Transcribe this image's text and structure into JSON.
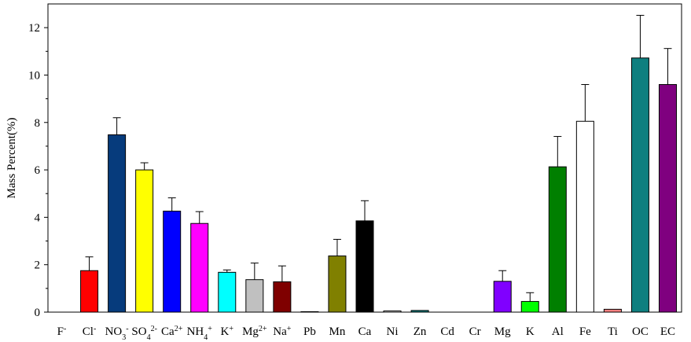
{
  "chart_data": {
    "type": "bar",
    "title": "",
    "xlabel": "",
    "ylabel": "Mass Percent(%)",
    "ylim": [
      0,
      13
    ],
    "yticks": [
      0,
      2,
      4,
      6,
      8,
      10,
      12
    ],
    "grid": false,
    "legend": "none",
    "error_bars": true,
    "categories": [
      {
        "base": "F",
        "sup": "-",
        "sub": ""
      },
      {
        "base": "Cl",
        "sup": "-",
        "sub": ""
      },
      {
        "base": "NO",
        "sub": "3",
        "sup": "-"
      },
      {
        "base": "SO",
        "sub": "4",
        "sup": "2-"
      },
      {
        "base": "Ca",
        "sup": "2+",
        "sub": ""
      },
      {
        "base": "NH",
        "sub": "4",
        "sup": "+"
      },
      {
        "base": "K",
        "sup": "+",
        "sub": ""
      },
      {
        "base": "Mg",
        "sup": "2+",
        "sub": ""
      },
      {
        "base": "Na",
        "sup": "+",
        "sub": ""
      },
      {
        "base": "Pb",
        "sup": "",
        "sub": ""
      },
      {
        "base": "Mn",
        "sup": "",
        "sub": ""
      },
      {
        "base": "Ca",
        "sup": "",
        "sub": ""
      },
      {
        "base": "Ni",
        "sup": "",
        "sub": ""
      },
      {
        "base": "Zn",
        "sup": "",
        "sub": ""
      },
      {
        "base": "Cd",
        "sup": "",
        "sub": ""
      },
      {
        "base": "Cr",
        "sup": "",
        "sub": ""
      },
      {
        "base": "Mg",
        "sup": "",
        "sub": ""
      },
      {
        "base": "K",
        "sup": "",
        "sub": ""
      },
      {
        "base": "Al",
        "sup": "",
        "sub": ""
      },
      {
        "base": "Fe",
        "sup": "",
        "sub": ""
      },
      {
        "base": "Ti",
        "sup": "",
        "sub": ""
      },
      {
        "base": "OC",
        "sup": "",
        "sub": ""
      },
      {
        "base": "EC",
        "sup": "",
        "sub": ""
      }
    ],
    "values": [
      0,
      1.75,
      7.48,
      6.0,
      4.26,
      3.74,
      1.68,
      1.37,
      1.28,
      0.02,
      2.37,
      3.85,
      0.05,
      0.07,
      0.0,
      0.0,
      1.3,
      0.45,
      6.13,
      8.05,
      0.12,
      10.72,
      9.6
    ],
    "errors": [
      0,
      0.58,
      0.72,
      0.3,
      0.56,
      0.5,
      0.1,
      0.7,
      0.67,
      0,
      0.7,
      0.85,
      0,
      0,
      0,
      0,
      0.45,
      0.37,
      1.28,
      1.55,
      0,
      1.8,
      1.52
    ],
    "colors": [
      "#ffffff",
      "#ff0000",
      "#063b7c",
      "#ffff00",
      "#0000ff",
      "#ff00ff",
      "#00ffff",
      "#c0c0c0",
      "#7f0000",
      "#ffffff",
      "#808000",
      "#000000",
      "#ffffff",
      "#008080",
      "#ffffff",
      "#ffffff",
      "#8000ff",
      "#00ff00",
      "#007f00",
      "#ffffff",
      "#ff8080",
      "#0f7f7f",
      "#7f007f"
    ]
  }
}
